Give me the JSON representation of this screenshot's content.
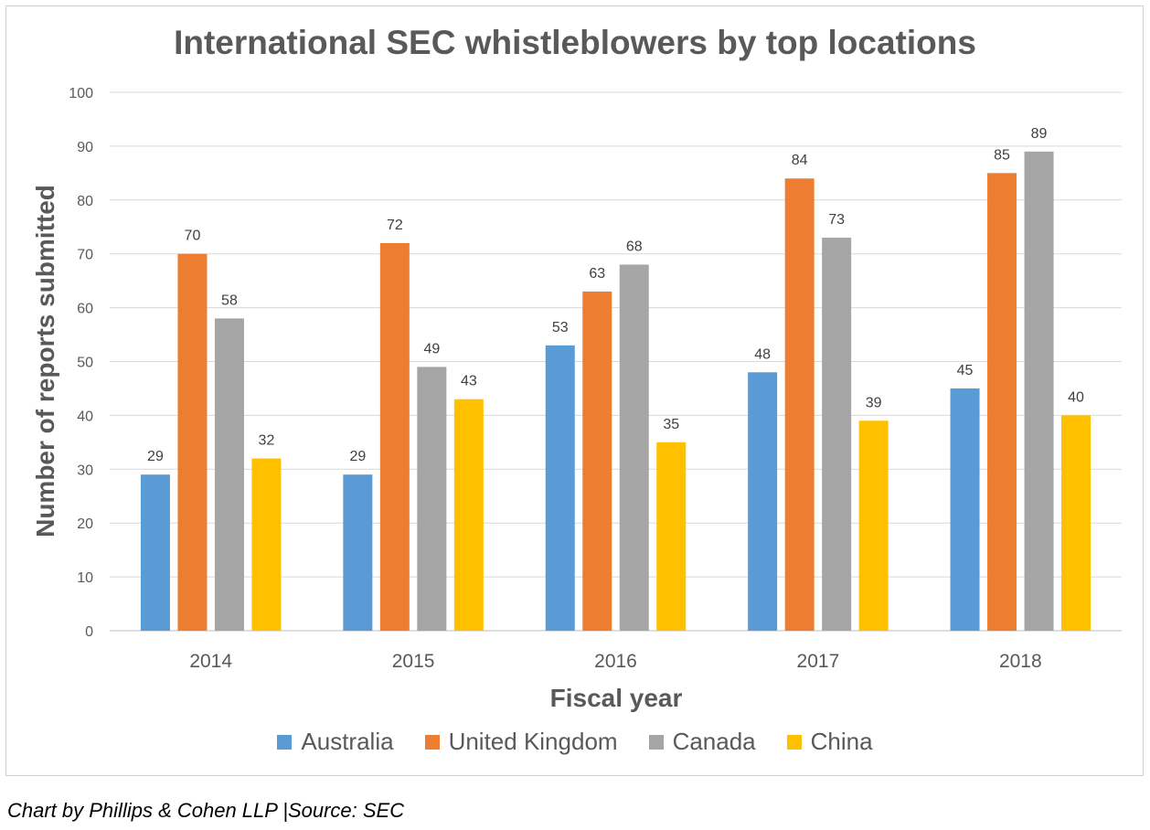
{
  "chart_data": {
    "type": "bar",
    "title": "International SEC whistleblowers by top locations",
    "xlabel": "Fiscal year",
    "ylabel": "Number of reports submitted",
    "categories": [
      "2014",
      "2015",
      "2016",
      "2017",
      "2018"
    ],
    "ylim": [
      0,
      100
    ],
    "yticks": [
      0,
      10,
      20,
      30,
      40,
      50,
      60,
      70,
      80,
      90,
      100
    ],
    "grid": true,
    "legend_position": "bottom",
    "series": [
      {
        "name": "Australia",
        "color": "#5b9bd5",
        "values": [
          29,
          29,
          53,
          48,
          45
        ]
      },
      {
        "name": "United Kingdom",
        "color": "#ed7d31",
        "values": [
          70,
          72,
          63,
          84,
          85
        ]
      },
      {
        "name": "Canada",
        "color": "#a5a5a5",
        "values": [
          58,
          49,
          68,
          73,
          89
        ]
      },
      {
        "name": "China",
        "color": "#ffc000",
        "values": [
          32,
          43,
          35,
          39,
          40
        ]
      }
    ]
  },
  "footer": {
    "source": "Chart by Phillips & Cohen LLP |Source: SEC"
  }
}
